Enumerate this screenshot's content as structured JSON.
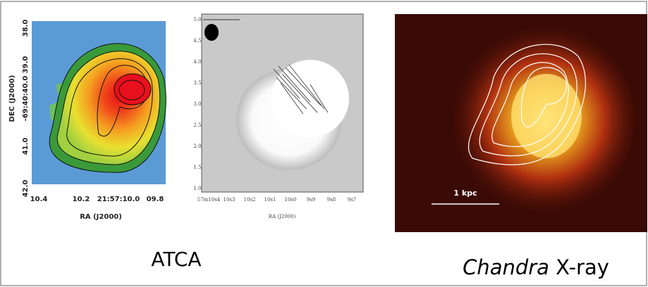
{
  "panels": [
    {
      "y_label": "DEC (J2000)",
      "x_label": "RA (J2000)",
      "yticks": [
        "38.0",
        "39.0",
        "-69:40:40.0",
        "41.0",
        "42.0"
      ],
      "xticks": [
        "10.4",
        "10.2",
        "21:57:10.0",
        "09.8"
      ]
    },
    {
      "x_label": "RA (J2000)",
      "yticks": [
        "5.0",
        "4.5",
        "4.0",
        "3.5",
        "3.0",
        "2.5",
        "2.0",
        "1.5",
        "1.0"
      ],
      "xticks": [
        "57m10s4",
        "10s3",
        "10s2",
        "10s1",
        "10s0",
        "9s9",
        "9s8",
        "9s7"
      ]
    },
    {
      "scale_label": "1 kpc"
    }
  ],
  "captions": {
    "left": "ATCA",
    "right_italic": "Chandra",
    "right_rest": " X-ray"
  }
}
